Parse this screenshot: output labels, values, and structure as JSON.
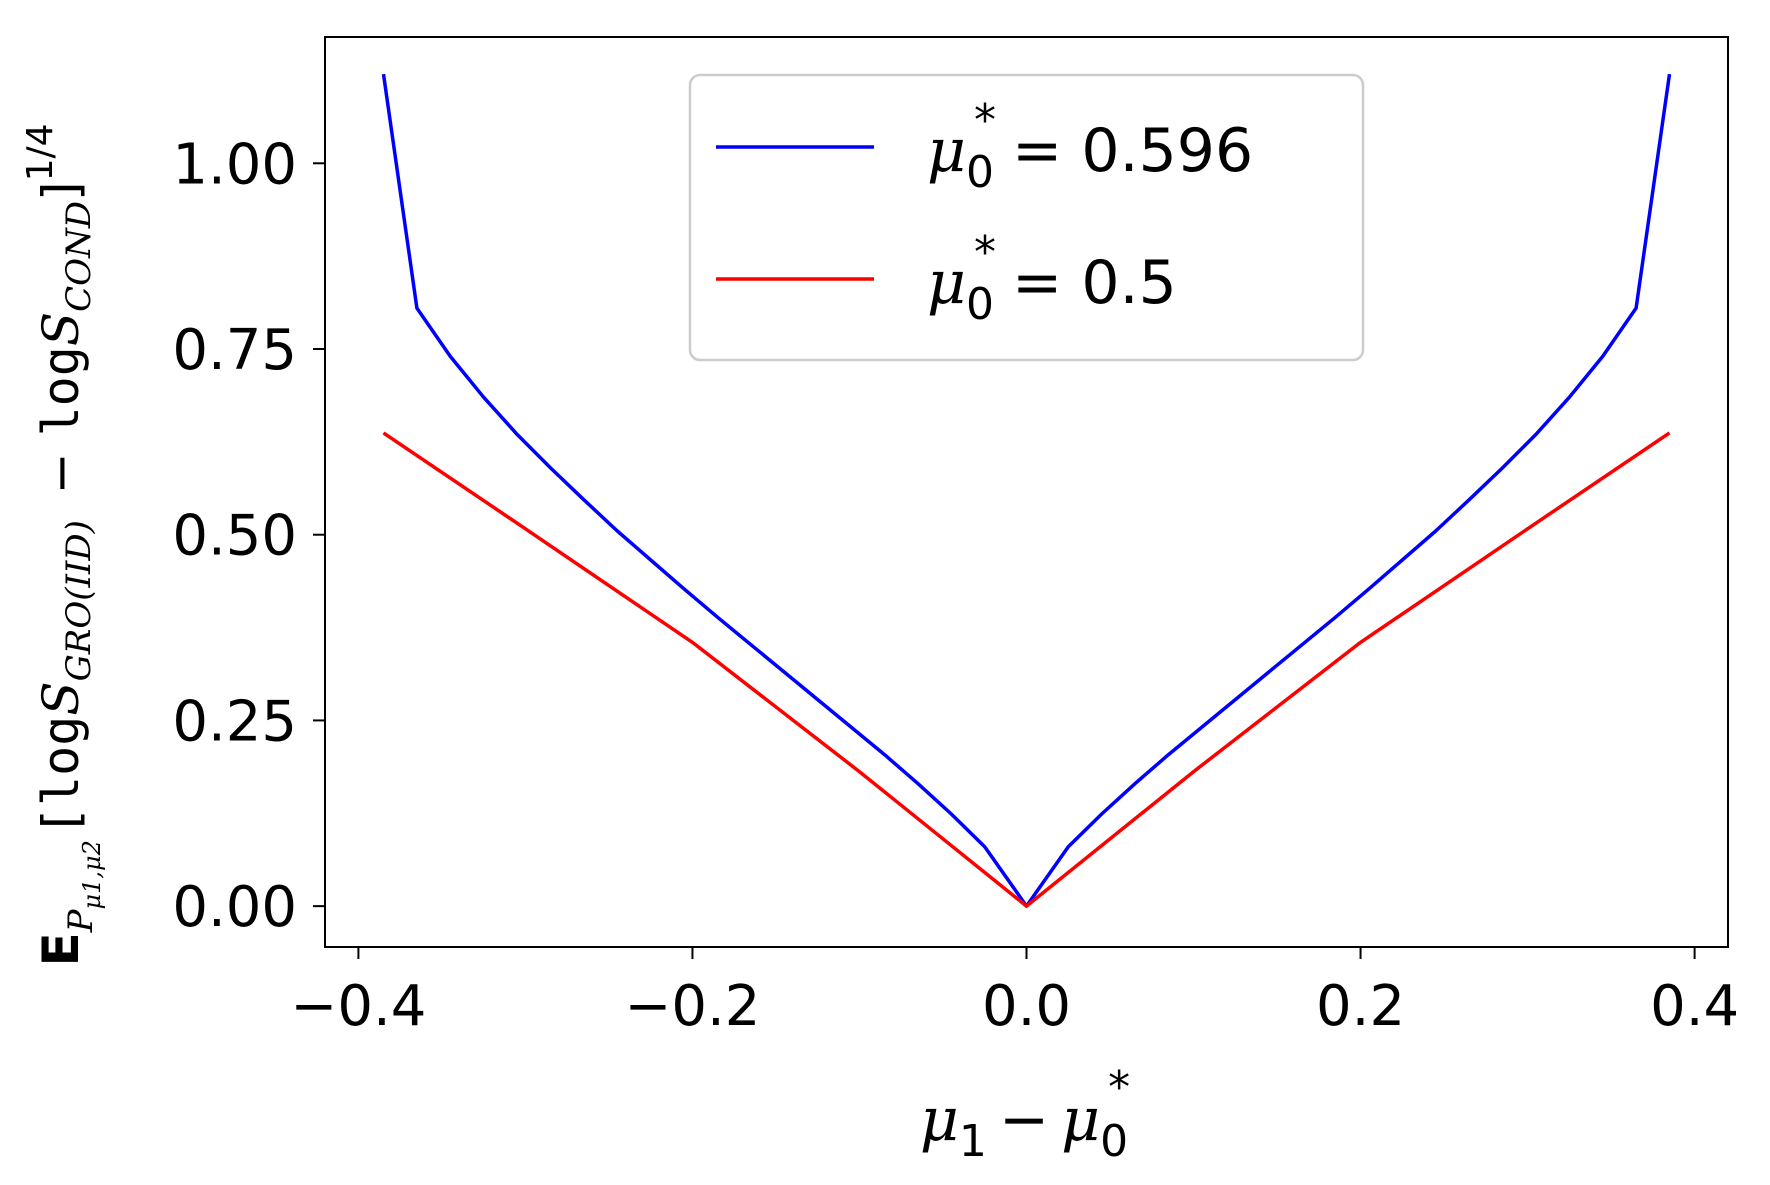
{
  "chart_data": {
    "type": "line",
    "title": "",
    "xlabel": "μ1 − μ0*",
    "ylabel": "E P μ1,μ2 [log S GRO(IID) − log S COND]^1/4",
    "xlim": [
      -0.42,
      0.42
    ],
    "ylim": [
      -0.055,
      1.17
    ],
    "xticks": [
      -0.4,
      -0.2,
      0.0,
      0.2,
      0.4
    ],
    "xtick_labels": [
      "−0.4",
      "−0.2",
      "0.0",
      "0.2",
      "0.4"
    ],
    "yticks": [
      0.0,
      0.25,
      0.5,
      0.75,
      1.0
    ],
    "ytick_labels": [
      "0.00",
      "0.25",
      "0.50",
      "0.75",
      "1.00"
    ],
    "grid": false,
    "legend_position": "top-center",
    "series": [
      {
        "name": "μ0* = 0.596",
        "legend_value": "= 0.596",
        "color": "#0000ff",
        "x": [
          -0.385,
          -0.365,
          -0.345,
          -0.325,
          -0.305,
          -0.285,
          -0.265,
          -0.245,
          -0.225,
          -0.205,
          -0.185,
          -0.165,
          -0.145,
          -0.125,
          -0.105,
          -0.085,
          -0.065,
          -0.045,
          -0.025,
          0.0,
          0.025,
          0.045,
          0.065,
          0.085,
          0.105,
          0.125,
          0.145,
          0.165,
          0.185,
          0.205,
          0.225,
          0.245,
          0.265,
          0.285,
          0.305,
          0.325,
          0.345,
          0.365,
          0.385
        ],
        "y": [
          1.12,
          0.805,
          0.74,
          0.685,
          0.635,
          0.59,
          0.547,
          0.505,
          0.466,
          0.427,
          0.389,
          0.352,
          0.315,
          0.278,
          0.241,
          0.204,
          0.165,
          0.124,
          0.08,
          0.0,
          0.08,
          0.124,
          0.165,
          0.204,
          0.241,
          0.278,
          0.315,
          0.352,
          0.389,
          0.427,
          0.466,
          0.505,
          0.547,
          0.59,
          0.635,
          0.685,
          0.74,
          0.805,
          1.12
        ]
      },
      {
        "name": "μ0* = 0.5",
        "legend_value": "= 0.5",
        "color": "#ff0000",
        "x": [
          -0.385,
          -0.3,
          -0.2,
          -0.1,
          0.0,
          0.1,
          0.2,
          0.3,
          0.385
        ],
        "y": [
          0.637,
          0.508,
          0.355,
          0.181,
          0.0,
          0.181,
          0.355,
          0.508,
          0.637
        ]
      }
    ]
  }
}
